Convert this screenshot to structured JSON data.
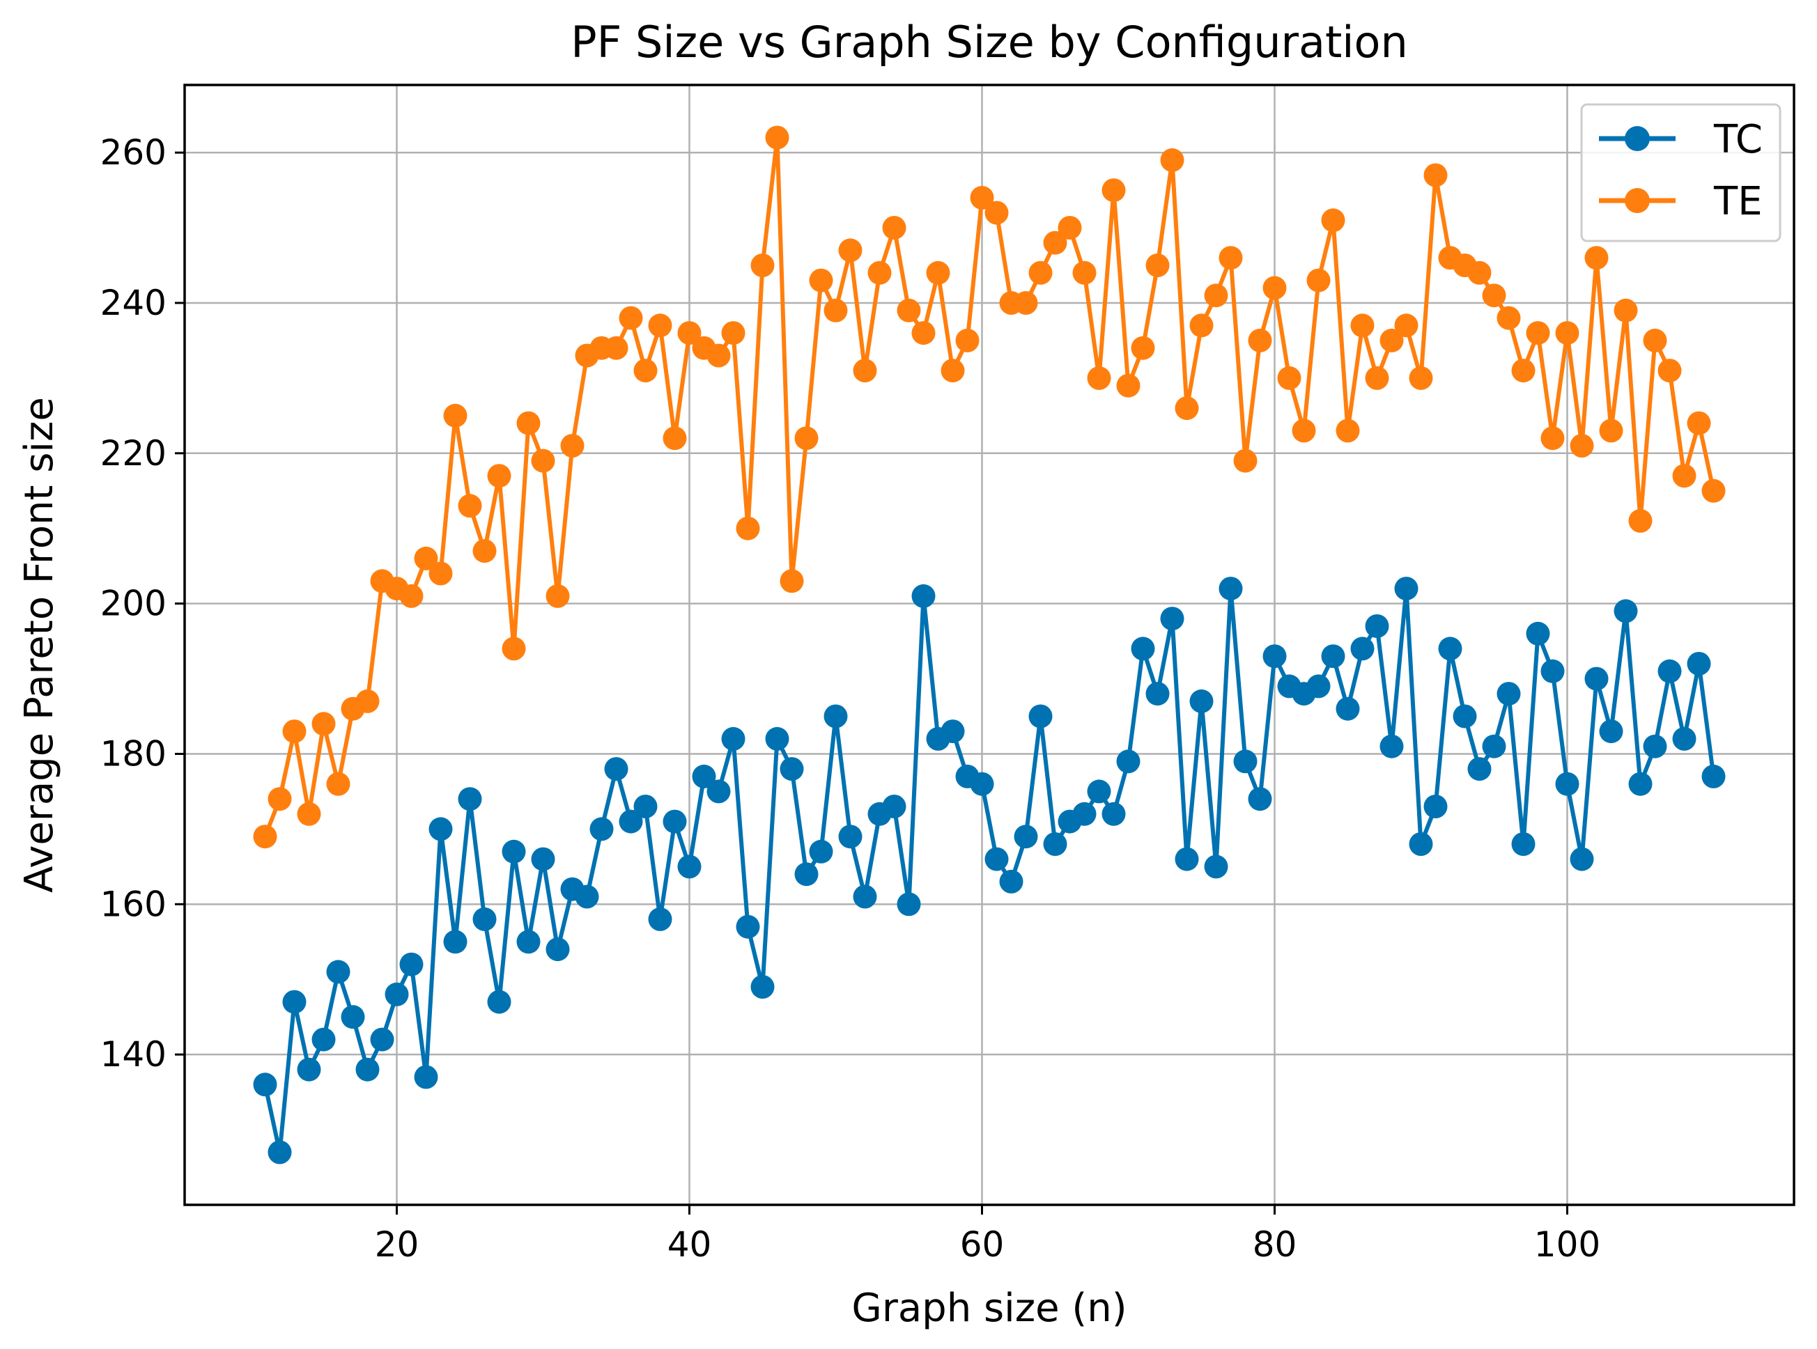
{
  "chart_data": {
    "type": "line",
    "title": "PF Size vs Graph Size by Configuration",
    "xlabel": "Graph size (n)",
    "ylabel": "Average Pareto Front size",
    "xlim": [
      5.5,
      115.5
    ],
    "ylim": [
      120,
      269
    ],
    "xticks": [
      20,
      40,
      60,
      80,
      100
    ],
    "yticks": [
      140,
      160,
      180,
      200,
      220,
      240,
      260
    ],
    "grid": true,
    "legend_position": "top-right",
    "x": [
      11,
      12,
      13,
      14,
      15,
      16,
      17,
      18,
      19,
      20,
      21,
      22,
      23,
      24,
      25,
      26,
      27,
      28,
      29,
      30,
      31,
      32,
      33,
      34,
      35,
      36,
      37,
      38,
      39,
      40,
      41,
      42,
      43,
      44,
      45,
      46,
      47,
      48,
      49,
      50,
      51,
      52,
      53,
      54,
      55,
      56,
      57,
      58,
      59,
      60,
      61,
      62,
      63,
      64,
      65,
      66,
      67,
      68,
      69,
      70,
      71,
      72,
      73,
      74,
      75,
      76,
      77,
      78,
      79,
      80,
      81,
      82,
      83,
      84,
      85,
      86,
      87,
      88,
      89,
      90,
      91,
      92,
      93,
      94,
      95,
      96,
      97,
      98,
      99,
      100,
      101,
      102,
      103,
      104,
      105,
      106,
      107,
      108,
      109,
      110
    ],
    "series": [
      {
        "name": "TC",
        "color": "#0072B2",
        "values": [
          136,
          127,
          147,
          138,
          142,
          151,
          145,
          138,
          142,
          148,
          152,
          137,
          170,
          155,
          174,
          158,
          147,
          167,
          155,
          166,
          154,
          162,
          161,
          170,
          178,
          171,
          173,
          158,
          171,
          165,
          177,
          175,
          182,
          157,
          149,
          182,
          178,
          164,
          167,
          185,
          169,
          161,
          172,
          173,
          160,
          201,
          182,
          183,
          177,
          176,
          166,
          163,
          169,
          185,
          168,
          171,
          172,
          175,
          172,
          179,
          194,
          188,
          198,
          166,
          187,
          165,
          202,
          179,
          174,
          193,
          189,
          188,
          189,
          193,
          186,
          194,
          197,
          181,
          202,
          168,
          173,
          194,
          185,
          178,
          181,
          188,
          168,
          196,
          191,
          176,
          166,
          190,
          183,
          199,
          176,
          181,
          191,
          182,
          192,
          177
        ]
      },
      {
        "name": "TE",
        "color": "#FF7F0E",
        "values": [
          169,
          174,
          183,
          172,
          184,
          176,
          186,
          187,
          203,
          202,
          201,
          206,
          204,
          225,
          213,
          207,
          217,
          194,
          224,
          219,
          201,
          221,
          233,
          234,
          234,
          238,
          231,
          237,
          222,
          236,
          234,
          233,
          236,
          210,
          245,
          262,
          203,
          222,
          243,
          239,
          247,
          231,
          244,
          250,
          239,
          236,
          244,
          231,
          235,
          254,
          252,
          240,
          240,
          244,
          248,
          250,
          244,
          230,
          255,
          229,
          234,
          245,
          259,
          226,
          237,
          241,
          246,
          219,
          235,
          242,
          230,
          223,
          243,
          251,
          223,
          237,
          230,
          235,
          237,
          230,
          257,
          246,
          245,
          244,
          241,
          238,
          231,
          236,
          222,
          236,
          221,
          246,
          223,
          239,
          211,
          235,
          231,
          217,
          224,
          215
        ]
      }
    ]
  }
}
